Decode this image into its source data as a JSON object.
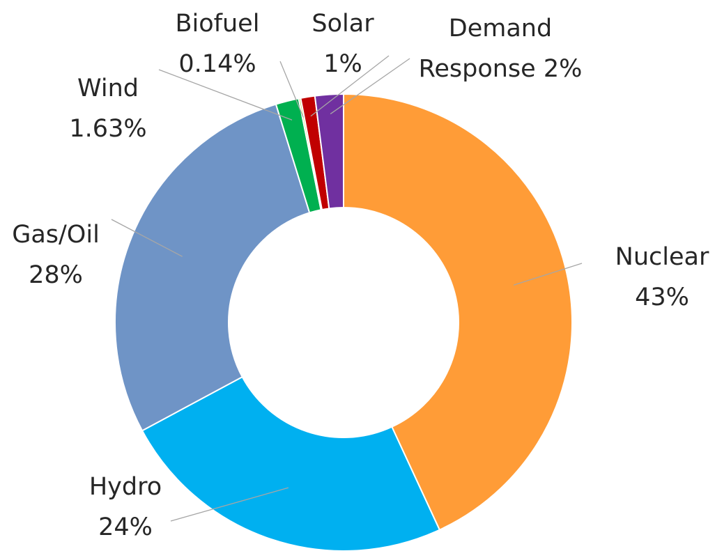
{
  "chart_data": {
    "type": "donut",
    "categories": [
      "Nuclear",
      "Hydro",
      "Gas/Oil",
      "Wind",
      "Biofuel",
      "Solar",
      "Demand Response"
    ],
    "values": [
      43,
      24,
      28,
      1.63,
      0.14,
      1,
      2
    ],
    "value_labels": [
      "43%",
      "24%",
      "28%",
      "1.63%",
      "0.14%",
      "1%",
      "2%"
    ],
    "colors": [
      "#ff9c37",
      "#00b0f0",
      "#6f94c6",
      "#00b050",
      "#c8d85a",
      "#c00000",
      "#7030a0"
    ]
  }
}
